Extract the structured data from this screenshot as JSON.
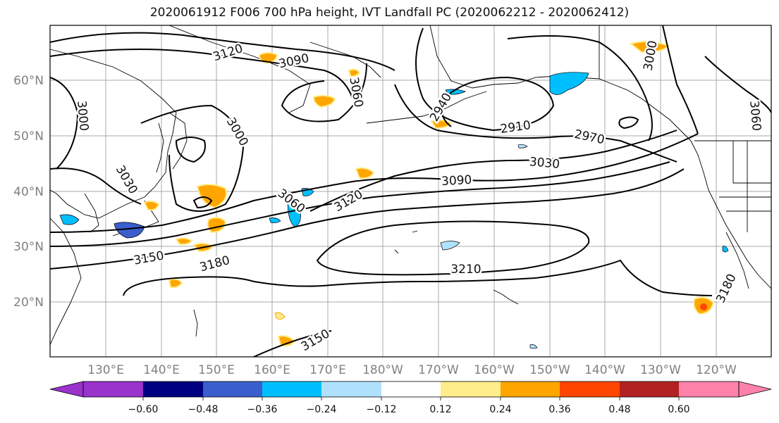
{
  "title": "2020061912 F006 700 hPa height, IVT Landfall PC (2020062212 - 2020062412)",
  "lat_ticks": [
    {
      "label": "60°N",
      "lat": 60
    },
    {
      "label": "50°N",
      "lat": 50
    },
    {
      "label": "40°N",
      "lat": 40
    },
    {
      "label": "30°N",
      "lat": 30
    },
    {
      "label": "20°N",
      "lat": 20
    }
  ],
  "lon_ticks": [
    "130°E",
    "140°E",
    "150°E",
    "160°E",
    "170°E",
    "180°W",
    "170°W",
    "160°W",
    "150°W",
    "140°W",
    "130°W",
    "120°W"
  ],
  "contour_labels": [
    "3120",
    "3090",
    "3060",
    "3000",
    "3000",
    "3030",
    "2940",
    "2910",
    "2970",
    "3030",
    "3090",
    "3060",
    "3120",
    "3150",
    "3180",
    "3210",
    "3180",
    "3150",
    "3060",
    "3000"
  ],
  "colorbar": {
    "colors": [
      "#9933cc",
      "#000080",
      "#3a5fcd",
      "#00bfff",
      "#b0e2ff",
      "#ffffff",
      "#ffec8b",
      "#ffa500",
      "#ff4500",
      "#b22222",
      "#ff82ab"
    ],
    "tick_labels": [
      "−0.60",
      "−0.48",
      "−0.36",
      "−0.24",
      "−0.12",
      "0.12",
      "0.24",
      "0.36",
      "0.48",
      "0.60"
    ]
  }
}
